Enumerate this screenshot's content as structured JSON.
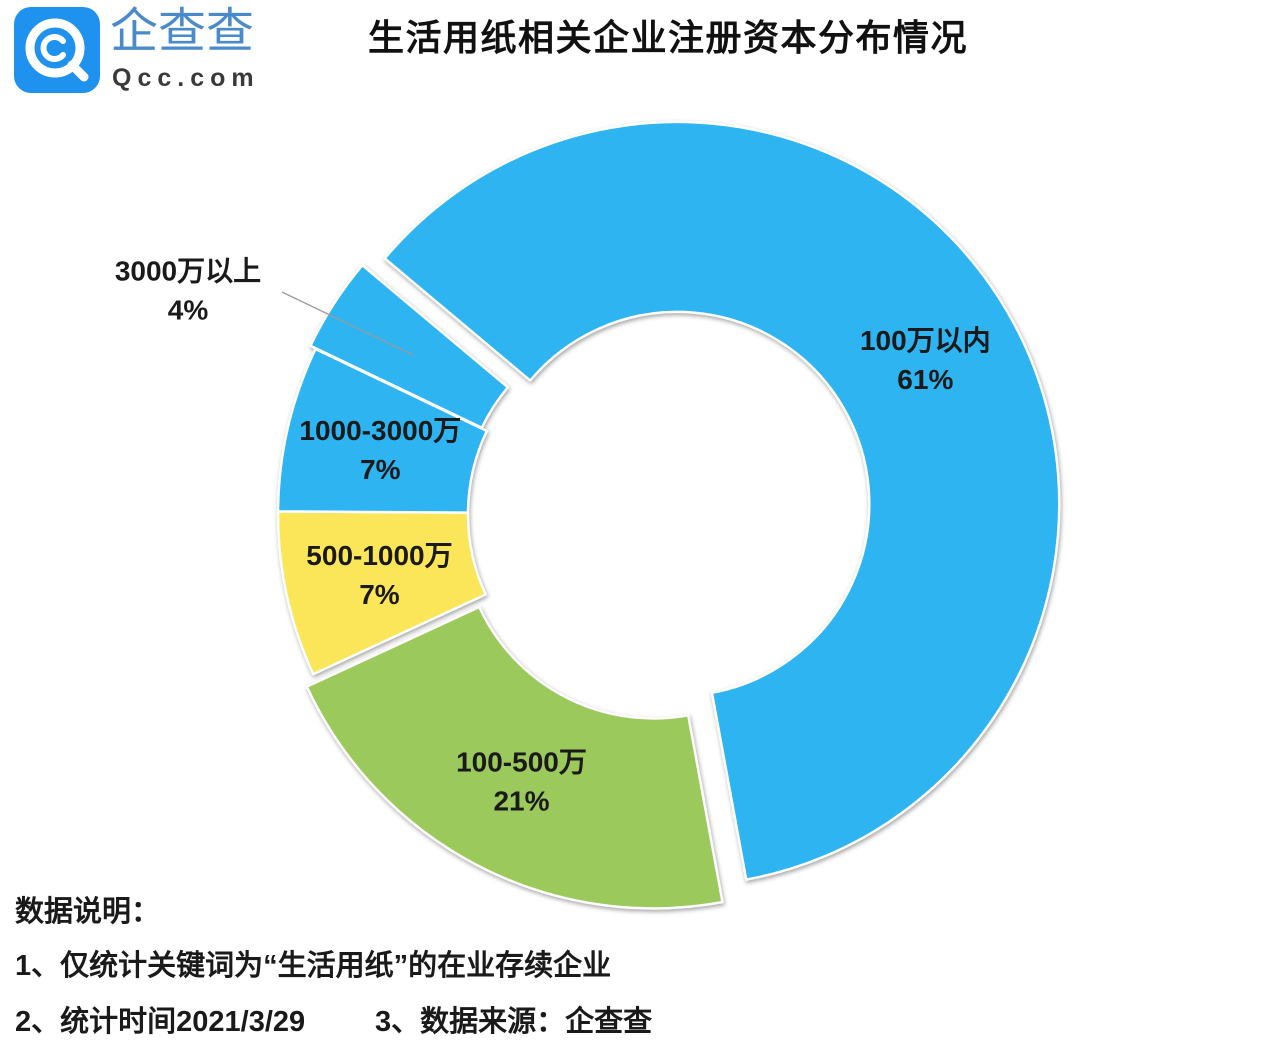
{
  "logo": {
    "name": "企查查",
    "domain": "Qcc.com",
    "color": "#1E92EE"
  },
  "chart_data": {
    "type": "pie",
    "donut": true,
    "title": "生活用纸相关企业注册资本分布情况",
    "categories": [
      "100万以内",
      "100-500万",
      "500-1000万",
      "1000-3000万",
      "3000万以上"
    ],
    "values": [
      61,
      21,
      7,
      7,
      4
    ],
    "value_labels": [
      "61%",
      "21%",
      "7%",
      "7%",
      "4%"
    ],
    "colors": [
      "#2DB4F1",
      "#9BC95B",
      "#FBE65A",
      "#2DB4F1",
      "#2DB4F1"
    ],
    "exploded": [
      true,
      true,
      false,
      false,
      true
    ]
  },
  "notes": {
    "heading": "数据说明：",
    "items": [
      "1、仅统计关键词为“生活用纸”的在业存续企业",
      "2、统计时间2021/3/29",
      "3、数据来源：企查查"
    ]
  }
}
